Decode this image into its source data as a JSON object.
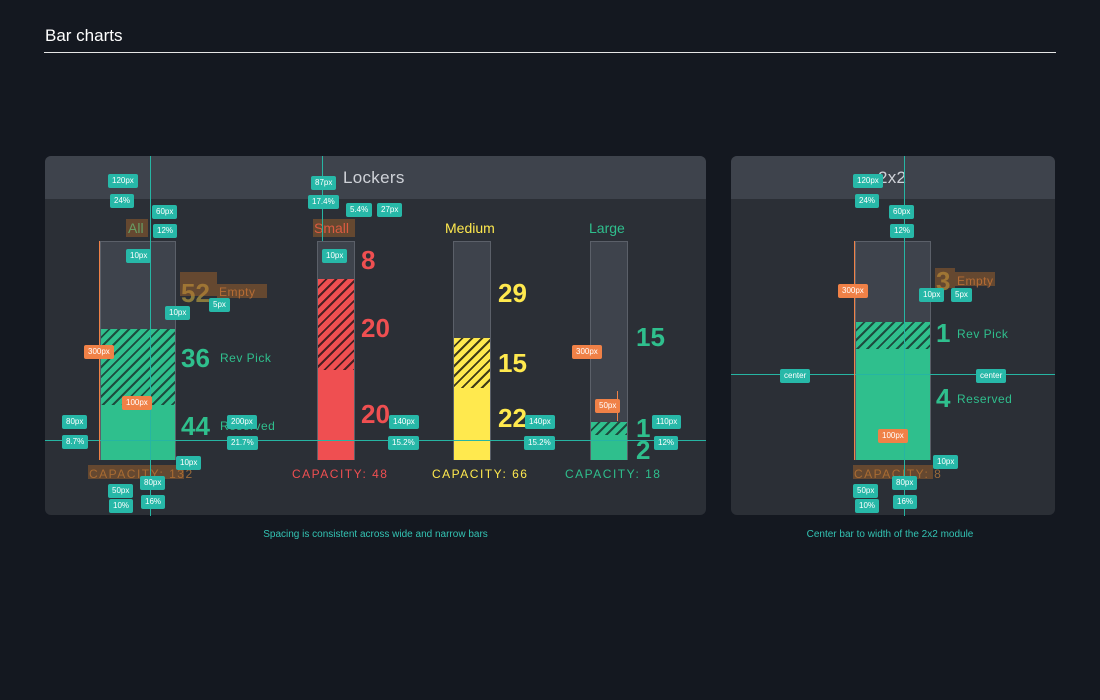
{
  "page": {
    "title": "Bar charts"
  },
  "lockers": {
    "title": "Lockers",
    "caption": "Spacing is consistent across wide and narrow bars",
    "all": {
      "label": "All",
      "empty": {
        "value": "52",
        "label": "Empty"
      },
      "rev_pick": {
        "value": "36",
        "label": "Rev Pick"
      },
      "reserved": {
        "value": "44",
        "label": "Reserved"
      },
      "capacity": "CAPACITY: 132"
    },
    "small": {
      "label": "Small",
      "values": [
        "8",
        "20",
        "20"
      ],
      "capacity": "CAPACITY: 48"
    },
    "medium": {
      "label": "Medium",
      "values": [
        "29",
        "15",
        "22"
      ],
      "capacity": "CAPACITY: 66"
    },
    "large": {
      "label": "Large",
      "values": [
        "15",
        "1",
        "2"
      ],
      "capacity": "CAPACITY: 18"
    }
  },
  "module2x2": {
    "title": "2x2",
    "caption": "Center bar to width of the 2x2 module",
    "empty": {
      "value": "3",
      "label": "Empty"
    },
    "rev_pick": {
      "value": "1",
      "label": "Rev Pick"
    },
    "reserved": {
      "value": "4",
      "label": "Reserved"
    },
    "capacity": "CAPACITY: 8"
  },
  "annotations": {
    "a120": "120px",
    "a24": "24%",
    "a60": "60px",
    "a12": "12%",
    "a10": "10px",
    "a5": "5px",
    "a300": "300px",
    "a100": "100px",
    "a80": "80px",
    "a8_7": "8.7%",
    "a200": "200px",
    "a21_7": "21.7%",
    "a50": "50px",
    "a10p": "10%",
    "a16": "16%",
    "a87": "87px",
    "a17_4": "17.4%",
    "a5_4": "5.4%",
    "a27": "27px",
    "a140": "140px",
    "a15_2": "15.2%",
    "a110": "110px",
    "center": "center"
  },
  "colors": {
    "green": "#2fbf8d",
    "red": "#ef4f51",
    "yellow": "#ffe94e",
    "teal": "#27b8a8",
    "orange": "#f08147"
  }
}
